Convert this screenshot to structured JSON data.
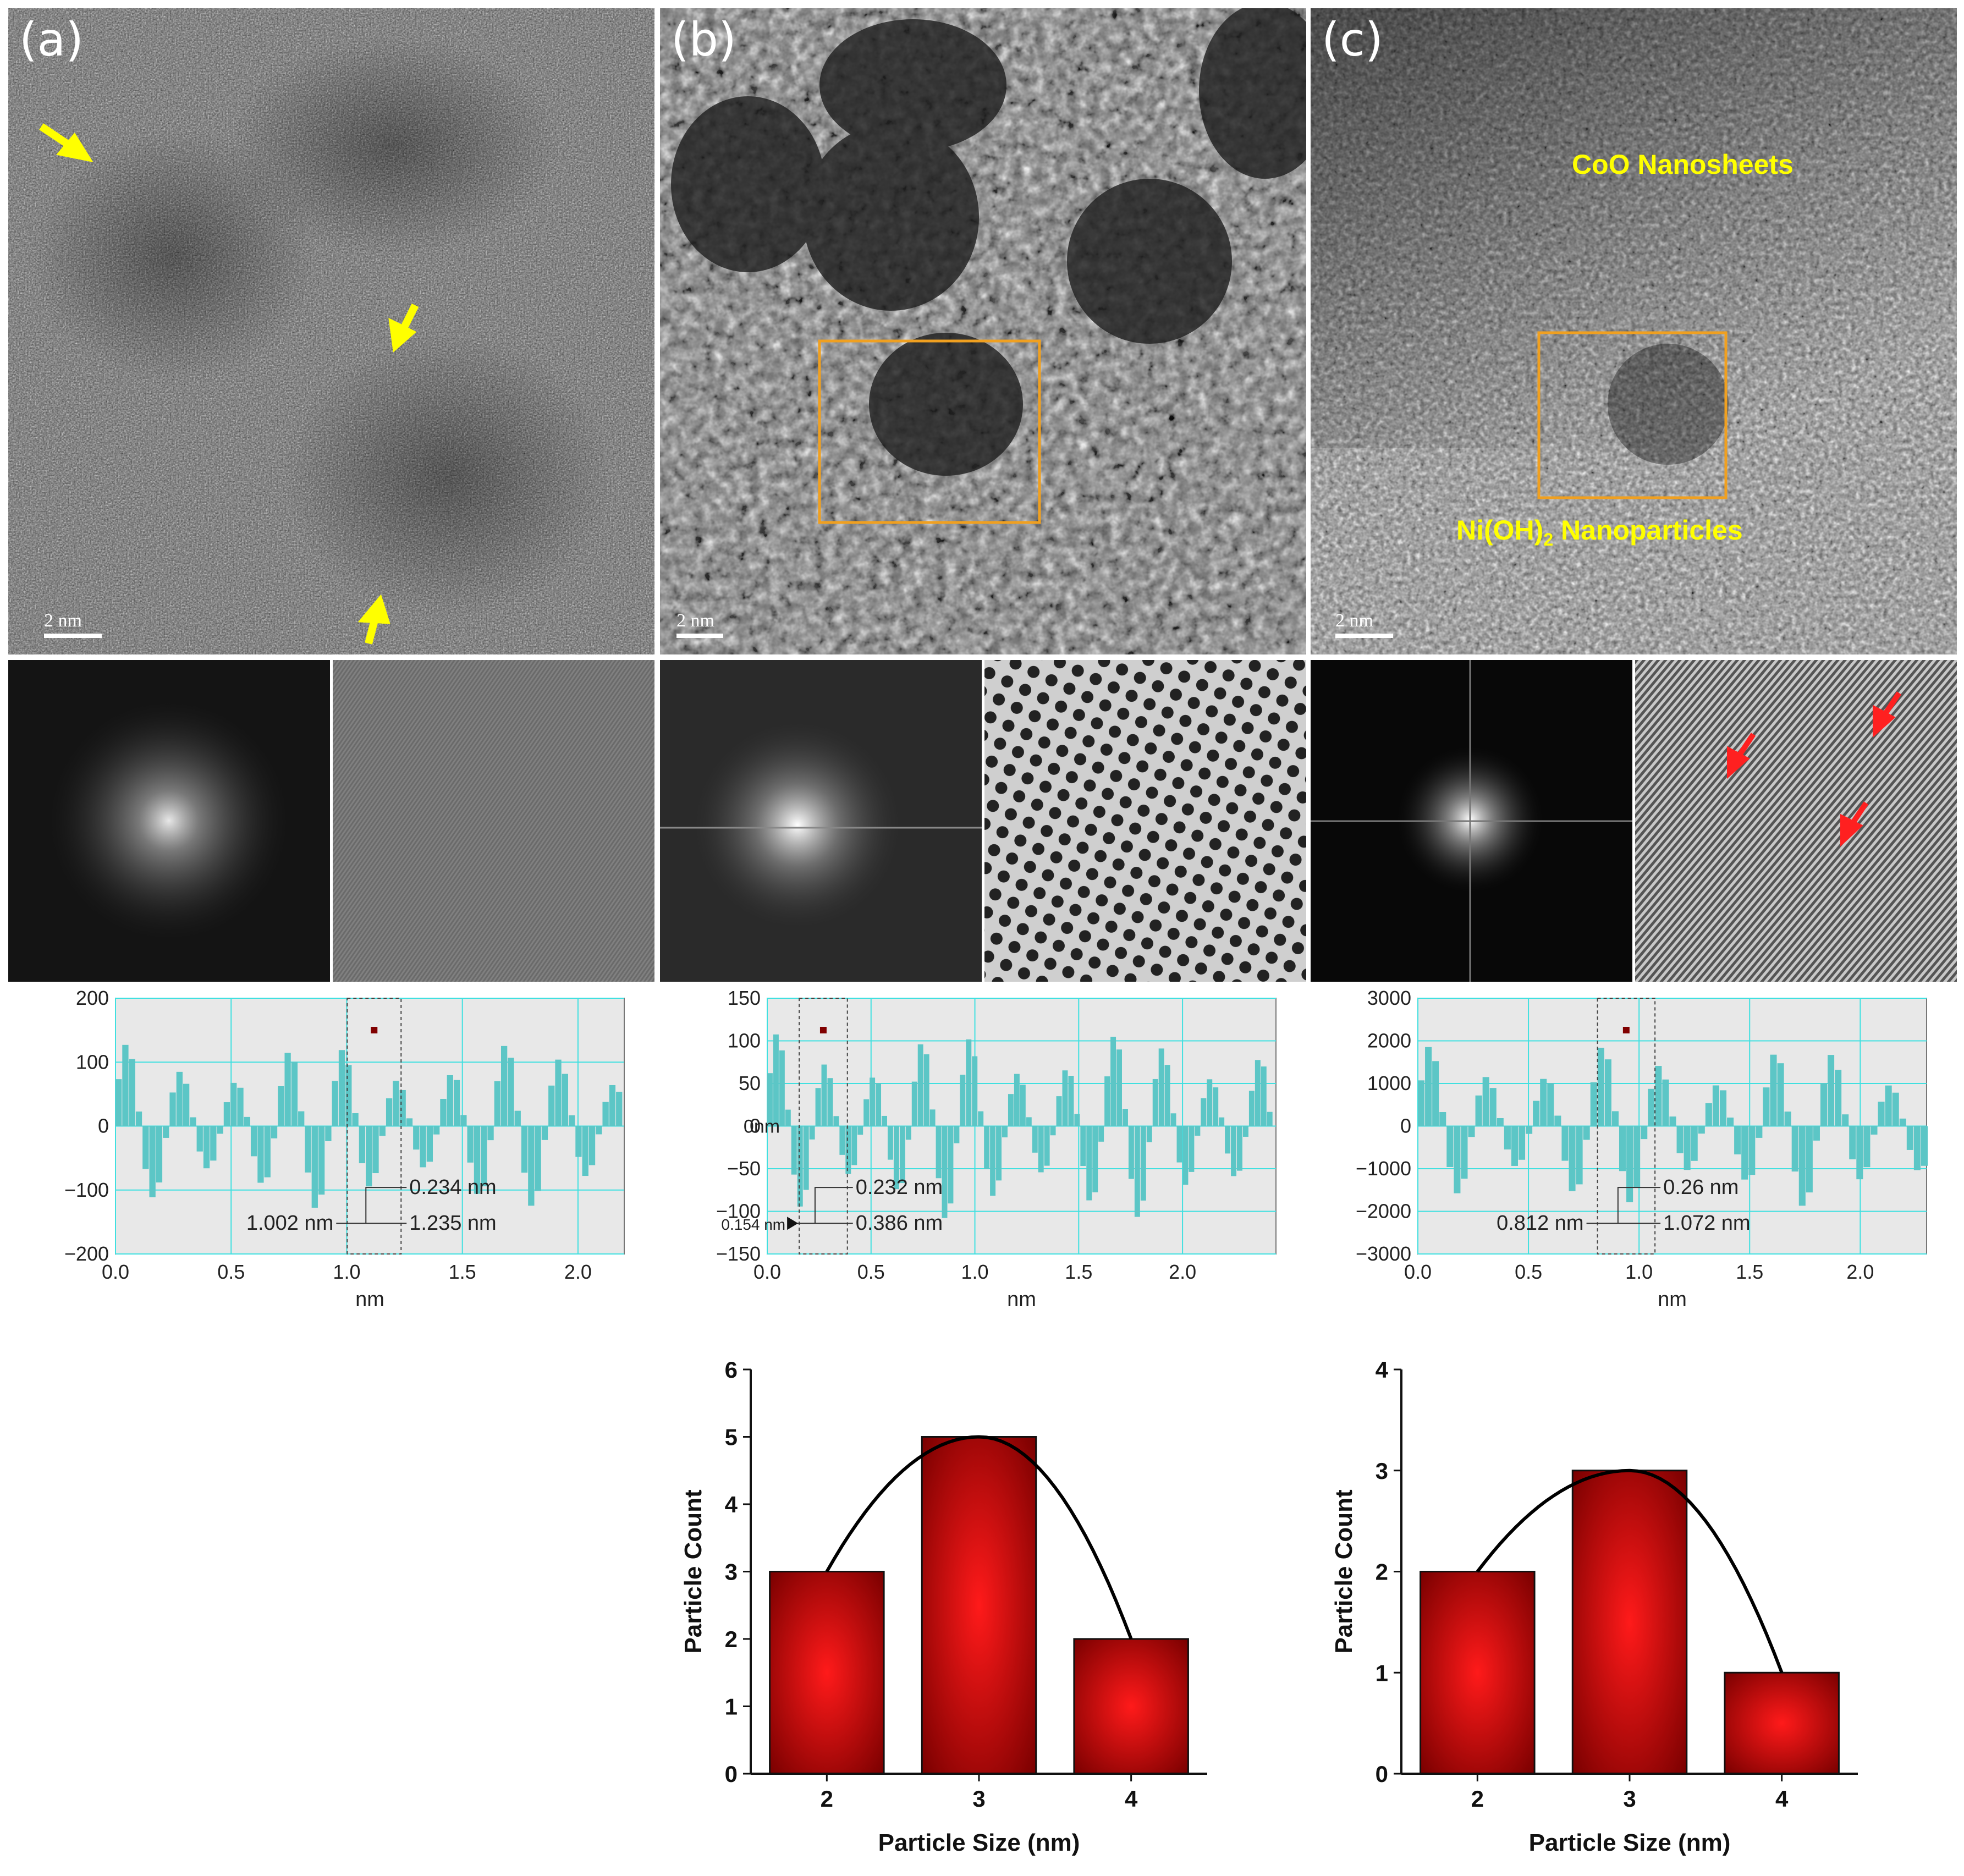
{
  "panels": {
    "a": {
      "label": "(a)",
      "scale": "2 nm"
    },
    "b": {
      "label": "(b)",
      "scale": "2 nm"
    },
    "c": {
      "label": "(c)",
      "scale": "2 nm",
      "annotation_top": "CoO Nanosheets",
      "annotation_bottom_pre": "Ni(OH)",
      "annotation_bottom_sub": "2",
      "annotation_bottom_post": " Nanoparticles"
    }
  },
  "colors": {
    "arrow_yellow": "#ffff00",
    "arrow_red": "#ff2020",
    "box_orange": "#f0a020",
    "profile_fill": "#5cc6c6",
    "plot_bg": "#e8e8e8",
    "grid": "#40e0e0",
    "bar_red": "#cc0000"
  },
  "chart_data": [
    {
      "type": "bar",
      "id": "profile-a",
      "xlabel": "nm",
      "xlim": [
        0,
        2.2
      ],
      "ylim": [
        -200,
        200
      ],
      "xticks": [
        "0.0",
        "0.5",
        "1.0",
        "1.5",
        "2.0"
      ],
      "yticks": [
        "200",
        "100",
        "0",
        "−100",
        "−200"
      ],
      "peak_period": 0.234,
      "peak_amplitude": 130,
      "annotations": [
        "0.234 nm",
        "1.002 nm",
        "1.235 nm"
      ]
    },
    {
      "type": "bar",
      "id": "profile-b",
      "xlabel": "nm",
      "xlim": [
        0,
        2.45
      ],
      "ylim": [
        -150,
        150
      ],
      "xticks": [
        "0.0",
        "0.5",
        "1.0",
        "1.5",
        "2.0"
      ],
      "yticks": [
        "150",
        "100",
        "50",
        "0",
        "−50",
        "−100",
        "−150"
      ],
      "zero_label": "0nm",
      "peak_period": 0.232,
      "peak_amplitude": 110,
      "annotations": [
        "0.232 nm",
        "0.154 nm",
        "0.386 nm"
      ]
    },
    {
      "type": "bar",
      "id": "profile-c",
      "xlabel": "nm",
      "xlim": [
        0,
        2.3
      ],
      "ylim": [
        -3000,
        3000
      ],
      "xticks": [
        "0.0",
        "0.5",
        "1.0",
        "1.5",
        "2.0"
      ],
      "yticks": [
        "3000",
        "2000",
        "1000",
        "0",
        "−1000",
        "−2000",
        "−3000"
      ],
      "peak_period": 0.26,
      "peak_amplitude": 1900,
      "annotations": [
        "0.26 nm",
        "0.812 nm",
        "1.072 nm"
      ]
    },
    {
      "type": "bar",
      "id": "histogram-b",
      "xlabel": "Particle Size (nm)",
      "ylabel": "Particle Count",
      "categories": [
        "2",
        "3",
        "4"
      ],
      "values": [
        3,
        5,
        2
      ],
      "ylim": [
        0,
        6
      ],
      "yticks": [
        "0",
        "1",
        "2",
        "3",
        "4",
        "5",
        "6"
      ]
    },
    {
      "type": "bar",
      "id": "histogram-c",
      "xlabel": "Particle Size (nm)",
      "ylabel": "Particle Count",
      "categories": [
        "2",
        "3",
        "4"
      ],
      "values": [
        2,
        3,
        1
      ],
      "ylim": [
        0,
        4
      ],
      "yticks": [
        "0",
        "1",
        "2",
        "3",
        "4"
      ]
    }
  ]
}
